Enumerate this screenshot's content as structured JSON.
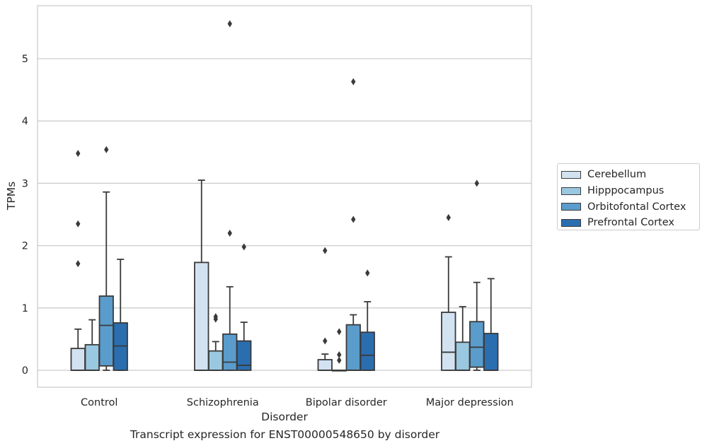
{
  "caption": "Transcript expression for ENST00000548650 by disorder",
  "chart_data": {
    "type": "boxplot",
    "title": "",
    "xlabel": "Disorder",
    "ylabel": "TPMs",
    "ylim": [
      -0.27,
      5.85
    ],
    "yticks": [
      0,
      1,
      2,
      3,
      4,
      5
    ],
    "grid": true,
    "legend_position": "right",
    "categories": [
      "Control",
      "Schizophrenia",
      "Bipolar disorder",
      "Major depression"
    ],
    "series": [
      {
        "name": "Cerebellum",
        "color": "#d2e2f1",
        "boxes": [
          {
            "whislo": 0.0,
            "q1": 0.0,
            "med": 0.0,
            "q3": 0.35,
            "whishi": 0.66,
            "fliers": [
              1.71,
              2.35,
              3.48
            ]
          },
          {
            "whislo": 0.0,
            "q1": 0.0,
            "med": 0.0,
            "q3": 1.73,
            "whishi": 3.05,
            "fliers": []
          },
          {
            "whislo": 0.0,
            "q1": 0.0,
            "med": 0.0,
            "q3": 0.17,
            "whishi": 0.26,
            "fliers": [
              0.47,
              1.92
            ]
          },
          {
            "whislo": 0.0,
            "q1": 0.0,
            "med": 0.29,
            "q3": 0.93,
            "whishi": 1.82,
            "fliers": [
              2.45
            ]
          }
        ]
      },
      {
        "name": "Hipppocampus",
        "color": "#9ac8e0",
        "boxes": [
          {
            "whislo": 0.0,
            "q1": 0.0,
            "med": 0.0,
            "q3": 0.41,
            "whishi": 0.81,
            "fliers": []
          },
          {
            "whislo": 0.0,
            "q1": 0.0,
            "med": 0.0,
            "q3": 0.31,
            "whishi": 0.46,
            "fliers": [
              0.82,
              0.86
            ]
          },
          {
            "whislo": 0.0,
            "q1": 0.0,
            "med": 0.0,
            "q3": 0.0,
            "whishi": 0.0,
            "fliers": [
              0.16,
              0.25,
              0.62
            ]
          },
          {
            "whislo": 0.0,
            "q1": 0.0,
            "med": 0.0,
            "q3": 0.45,
            "whishi": 1.02,
            "fliers": []
          }
        ]
      },
      {
        "name": "Orbitofontal Cortex",
        "color": "#5a9ccb",
        "boxes": [
          {
            "whislo": 0.0,
            "q1": 0.07,
            "med": 0.72,
            "q3": 1.19,
            "whishi": 2.86,
            "fliers": [
              3.54
            ]
          },
          {
            "whislo": 0.0,
            "q1": 0.0,
            "med": 0.13,
            "q3": 0.58,
            "whishi": 1.34,
            "fliers": [
              2.2,
              5.56
            ]
          },
          {
            "whislo": 0.0,
            "q1": 0.0,
            "med": 0.0,
            "q3": 0.73,
            "whishi": 0.89,
            "fliers": [
              2.42,
              4.63
            ]
          },
          {
            "whislo": 0.0,
            "q1": 0.05,
            "med": 0.37,
            "q3": 0.78,
            "whishi": 1.41,
            "fliers": [
              3.0
            ]
          }
        ]
      },
      {
        "name": "Prefrontal Cortex",
        "color": "#2b6eb0",
        "boxes": [
          {
            "whislo": 0.0,
            "q1": 0.0,
            "med": 0.39,
            "q3": 0.76,
            "whishi": 1.78,
            "fliers": []
          },
          {
            "whislo": 0.0,
            "q1": 0.0,
            "med": 0.08,
            "q3": 0.47,
            "whishi": 0.77,
            "fliers": [
              1.98
            ]
          },
          {
            "whislo": 0.0,
            "q1": 0.0,
            "med": 0.24,
            "q3": 0.61,
            "whishi": 1.1,
            "fliers": [
              1.56
            ]
          },
          {
            "whislo": 0.0,
            "q1": 0.0,
            "med": 0.0,
            "q3": 0.59,
            "whishi": 1.47,
            "fliers": []
          }
        ]
      }
    ]
  }
}
